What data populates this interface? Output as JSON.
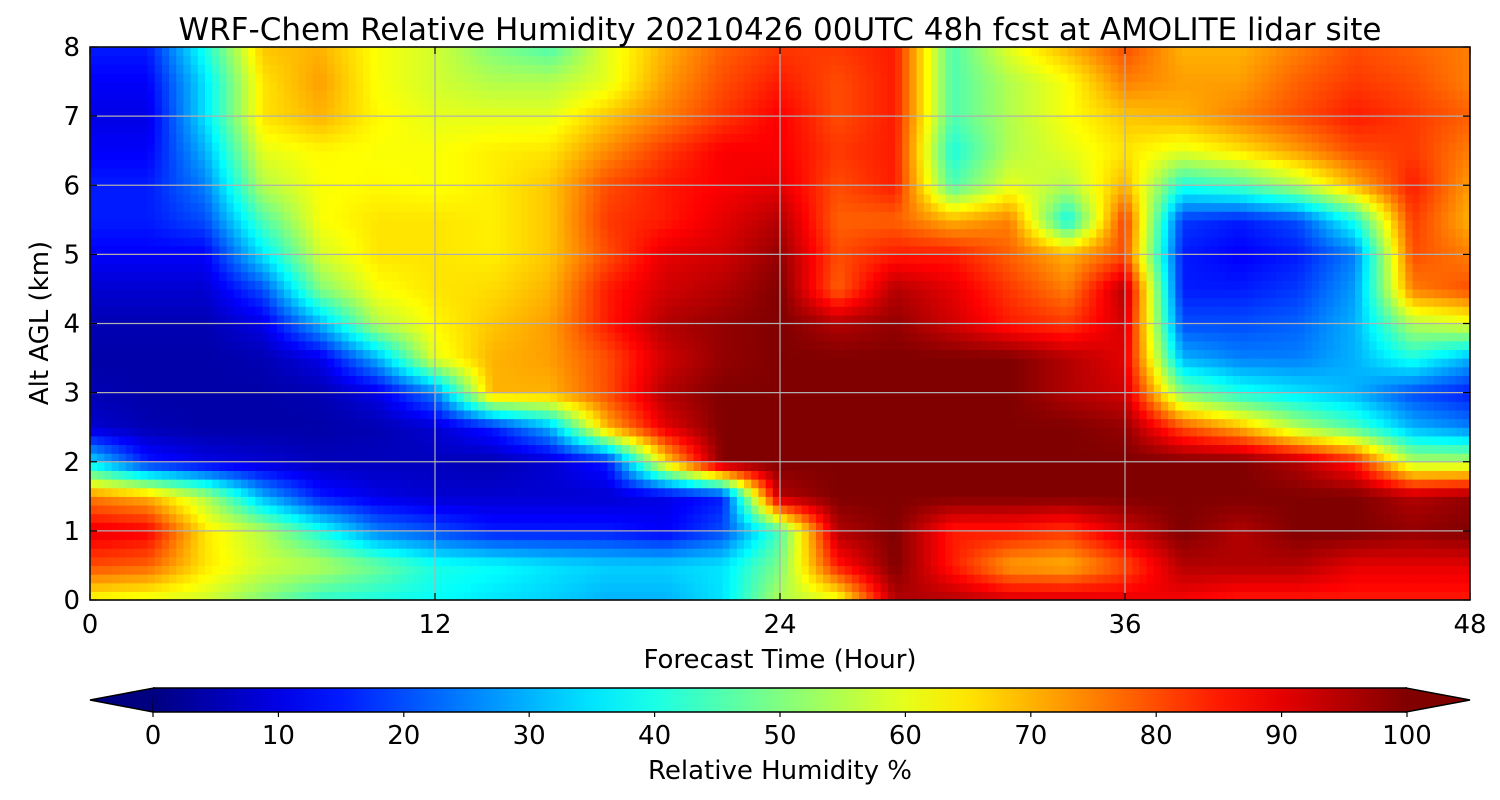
{
  "chart_data": {
    "type": "heatmap",
    "title": "WRF-Chem Relative Humidity 20210426 00UTC 48h fcst at AMOLITE lidar site",
    "xlabel": "Forecast Time (Hour)",
    "ylabel": "Alt AGL (km)",
    "xlim": [
      0,
      48
    ],
    "ylim": [
      0,
      8
    ],
    "x_ticks": [
      "0",
      "12",
      "24",
      "36",
      "48"
    ],
    "y_ticks": [
      "0",
      "1",
      "2",
      "3",
      "4",
      "5",
      "6",
      "7",
      "8"
    ],
    "grid": true,
    "colorbar": {
      "label": "Relative Humidity %",
      "colormap": "jet",
      "range": [
        0,
        100
      ],
      "ticks": [
        "0",
        "10",
        "20",
        "30",
        "40",
        "50",
        "60",
        "70",
        "80",
        "90",
        "100"
      ],
      "extend": "both"
    },
    "x": [
      0,
      2,
      4,
      6,
      8,
      10,
      12,
      14,
      16,
      18,
      20,
      22,
      24,
      26,
      28,
      30,
      32,
      34,
      36,
      38,
      40,
      42,
      44,
      46,
      48
    ],
    "y": [
      0,
      0.5,
      1,
      1.5,
      2,
      2.5,
      3,
      3.5,
      4,
      4.5,
      5,
      5.5,
      6,
      6.5,
      7,
      7.5,
      8
    ],
    "values": [
      [
        62,
        60,
        58,
        50,
        42,
        40,
        38,
        35,
        33,
        30,
        30,
        35,
        55,
        60,
        95,
        95,
        92,
        92,
        90,
        88,
        85,
        85,
        85,
        85,
        85
      ],
      [
        80,
        78,
        65,
        58,
        55,
        48,
        40,
        38,
        35,
        33,
        33,
        35,
        50,
        85,
        100,
        85,
        72,
        70,
        80,
        95,
        95,
        95,
        90,
        90,
        90
      ],
      [
        90,
        88,
        65,
        55,
        40,
        25,
        20,
        15,
        15,
        15,
        12,
        20,
        45,
        95,
        100,
        85,
        85,
        82,
        92,
        100,
        95,
        100,
        100,
        98,
        100
      ],
      [
        75,
        70,
        55,
        30,
        15,
        10,
        8,
        8,
        8,
        8,
        10,
        15,
        95,
        100,
        100,
        100,
        100,
        100,
        100,
        100,
        100,
        100,
        100,
        95,
        98
      ],
      [
        35,
        15,
        10,
        8,
        6,
        6,
        6,
        5,
        8,
        15,
        65,
        100,
        100,
        100,
        100,
        100,
        100,
        100,
        100,
        100,
        100,
        95,
        85,
        55,
        55
      ],
      [
        8,
        5,
        4,
        4,
        4,
        5,
        8,
        15,
        30,
        70,
        90,
        100,
        100,
        100,
        100,
        100,
        100,
        100,
        98,
        80,
        70,
        55,
        45,
        30,
        25
      ],
      [
        5,
        4,
        4,
        4,
        5,
        10,
        25,
        70,
        70,
        80,
        95,
        100,
        100,
        100,
        100,
        100,
        100,
        95,
        92,
        50,
        40,
        35,
        30,
        20,
        15
      ],
      [
        4,
        4,
        4,
        5,
        10,
        30,
        60,
        70,
        72,
        80,
        92,
        98,
        100,
        100,
        100,
        100,
        100,
        95,
        90,
        30,
        25,
        25,
        30,
        40,
        30
      ],
      [
        5,
        5,
        5,
        10,
        30,
        55,
        63,
        68,
        72,
        85,
        95,
        98,
        100,
        95,
        98,
        92,
        85,
        82,
        92,
        20,
        20,
        22,
        30,
        55,
        60
      ],
      [
        8,
        8,
        8,
        20,
        50,
        62,
        65,
        66,
        70,
        85,
        92,
        95,
        100,
        78,
        95,
        90,
        82,
        75,
        95,
        15,
        15,
        18,
        28,
        75,
        80
      ],
      [
        12,
        12,
        12,
        35,
        58,
        65,
        65,
        64,
        68,
        80,
        90,
        92,
        98,
        80,
        85,
        85,
        78,
        70,
        80,
        15,
        12,
        15,
        25,
        80,
        75
      ],
      [
        15,
        15,
        20,
        45,
        62,
        65,
        65,
        64,
        68,
        82,
        85,
        90,
        95,
        78,
        78,
        70,
        75,
        38,
        82,
        18,
        15,
        20,
        40,
        82,
        70
      ],
      [
        15,
        15,
        25,
        55,
        62,
        63,
        62,
        64,
        68,
        80,
        85,
        88,
        90,
        80,
        85,
        45,
        60,
        55,
        70,
        40,
        45,
        55,
        70,
        85,
        72
      ],
      [
        12,
        12,
        30,
        60,
        63,
        62,
        62,
        64,
        65,
        74,
        82,
        88,
        88,
        82,
        85,
        40,
        55,
        60,
        65,
        60,
        65,
        72,
        80,
        82,
        75
      ],
      [
        10,
        10,
        35,
        65,
        70,
        63,
        60,
        60,
        60,
        68,
        75,
        82,
        88,
        80,
        85,
        45,
        55,
        62,
        68,
        70,
        75,
        80,
        85,
        82,
        78
      ],
      [
        12,
        12,
        35,
        65,
        72,
        62,
        58,
        55,
        55,
        60,
        72,
        80,
        85,
        80,
        85,
        45,
        55,
        62,
        75,
        72,
        72,
        78,
        82,
        80,
        75
      ],
      [
        15,
        15,
        40,
        68,
        70,
        62,
        58,
        50,
        45,
        60,
        70,
        78,
        82,
        82,
        85,
        45,
        60,
        70,
        80,
        70,
        70,
        75,
        80,
        78,
        75
      ]
    ]
  }
}
